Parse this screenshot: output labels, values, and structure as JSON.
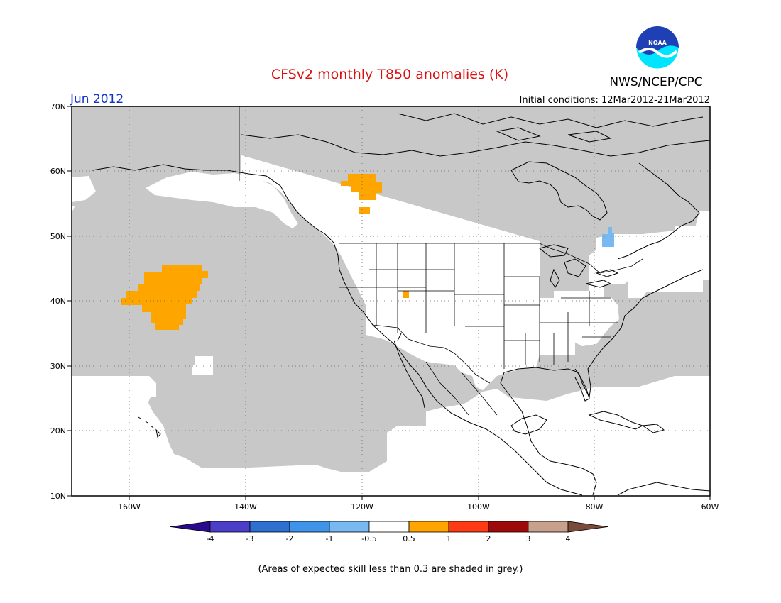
{
  "title": "CFSv2 monthly T850 anomalies (K)",
  "month": "Jun 2012",
  "agency": "NWS/NCEP/CPC",
  "logo_text": "NOAA",
  "initial_conditions": "Initial conditions: 12Mar2012-21Mar2012",
  "footer_note": "(Areas of expected skill less than 0.3 are shaded in grey.)",
  "map": {
    "lat_labels": [
      "70N",
      "60N",
      "50N",
      "40N",
      "30N",
      "20N",
      "10N"
    ],
    "lon_labels": [
      "160W",
      "140W",
      "120W",
      "100W",
      "80W",
      "60W"
    ],
    "extent": {
      "lon": [
        -171,
        -60
      ],
      "lat": [
        10,
        70
      ]
    }
  },
  "colorbar": {
    "labels": [
      "-4",
      "-3",
      "-2",
      "-1",
      "-0.5",
      "0.5",
      "1",
      "2",
      "3",
      "4"
    ],
    "colors": [
      "#2a0a8c",
      "#4b3fc9",
      "#2f6fd0",
      "#3f94ea",
      "#79b9f2",
      "#ffffff",
      "#ffa400",
      "#ff3b14",
      "#9e0a0a",
      "#c9a08b",
      "#7a4a3a"
    ]
  },
  "colors": {
    "title": "#dd1111",
    "month": "#1133cc",
    "grey_mask": "#c8c8c8",
    "orange": "#ffa500",
    "light_blue": "#79b9f2"
  }
}
